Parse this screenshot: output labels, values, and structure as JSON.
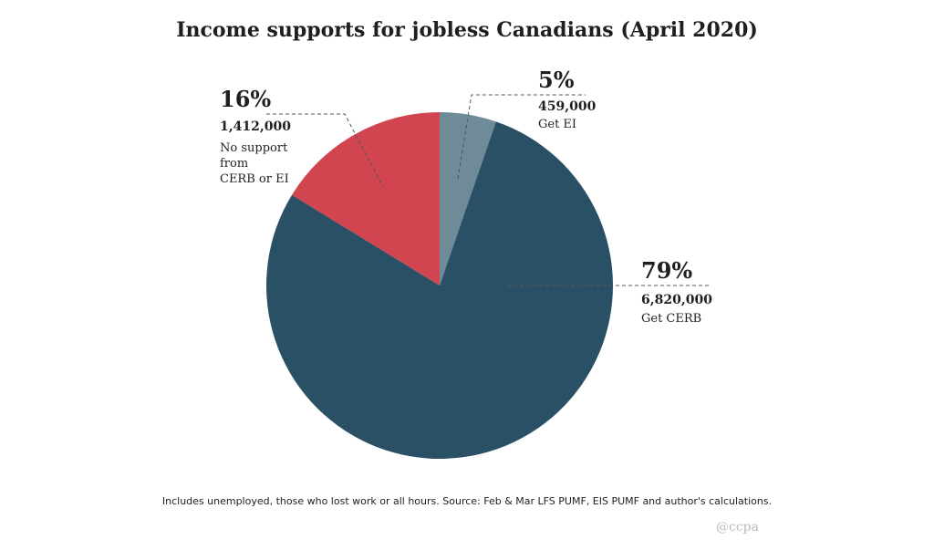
{
  "chart_data": {
    "type": "pie",
    "title": "Income supports for jobless Canadians (April 2020)",
    "slices": [
      {
        "percent": "5%",
        "value": 459000,
        "value_label": "459,000",
        "desc": [
          "Get EI"
        ],
        "color": "#6f8a99"
      },
      {
        "percent": "79%",
        "value": 6820000,
        "value_label": "6,820,000",
        "desc": [
          "Get CERB"
        ],
        "color": "#2a5066"
      },
      {
        "percent": "16%",
        "value": 1412000,
        "value_label": "1,412,000",
        "desc": [
          "No support",
          "from",
          "CERB or EI"
        ],
        "color": "#d0454f"
      }
    ],
    "start_angle_deg": 0,
    "direction": "clockwise"
  },
  "footnote": "Includes unemployed, those who lost work or all hours. Source: Feb & Mar LFS PUMF, EIS PUMF and author's calculations.",
  "credit": "@ccpa"
}
